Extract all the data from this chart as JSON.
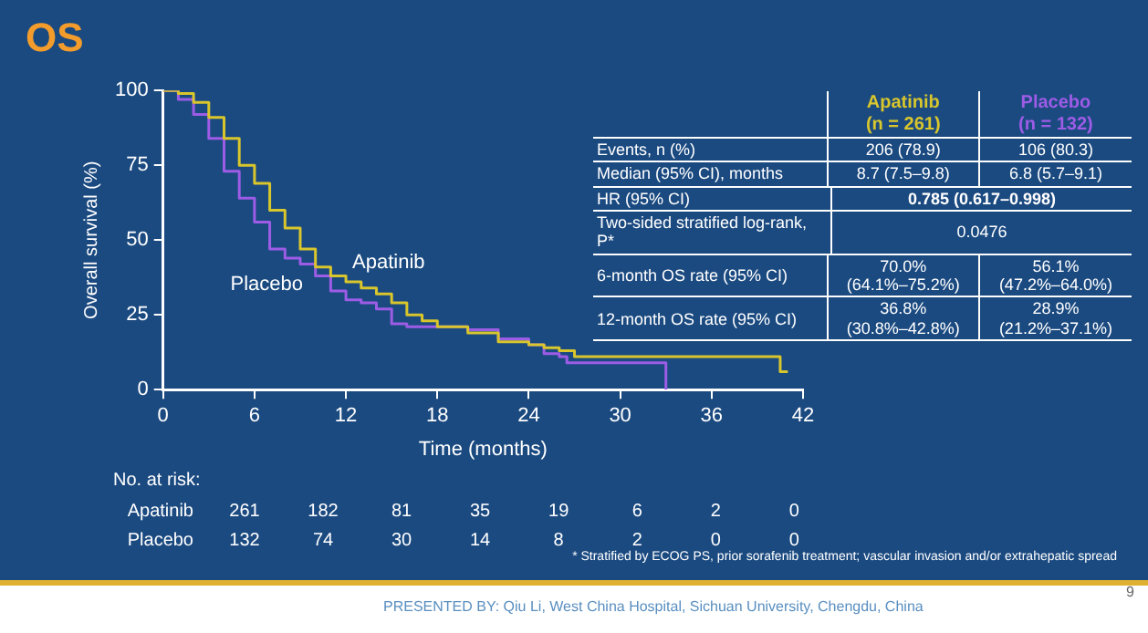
{
  "chart_data": {
    "type": "step",
    "title": "OS",
    "xlabel": "Time (months)",
    "ylabel": "Overall survival (%)",
    "xlim": [
      0,
      42
    ],
    "xticks": [
      0,
      6,
      12,
      18,
      24,
      30,
      36,
      42
    ],
    "ylim": [
      0,
      100
    ],
    "yticks": [
      0,
      25,
      50,
      75,
      100
    ],
    "grid": false,
    "legend": false,
    "series": [
      {
        "name": "Apatinib",
        "color": "#d8c62c",
        "x": [
          0,
          1,
          2,
          3,
          4,
          5,
          6,
          7,
          8,
          9,
          10,
          11,
          12,
          13,
          14,
          15,
          16,
          17,
          18,
          20,
          22,
          24,
          25,
          26,
          27,
          40.5,
          40.5,
          41
        ],
        "values": [
          100,
          99,
          96,
          91,
          84,
          75,
          69,
          60,
          54,
          47,
          41,
          38,
          36,
          34,
          32,
          29,
          25,
          23,
          21,
          19,
          16,
          15,
          14,
          13,
          11,
          11,
          6,
          6
        ]
      },
      {
        "name": "Placebo",
        "color": "#9d5ce6",
        "x": [
          0,
          1,
          2,
          3,
          4,
          5,
          6,
          7,
          8,
          9,
          10,
          11,
          12,
          13,
          14,
          15,
          16,
          18,
          20,
          22,
          24,
          25,
          26,
          26.5,
          33,
          33
        ],
        "values": [
          100,
          97,
          92,
          84,
          73,
          64,
          56,
          47,
          44,
          42,
          38,
          33,
          30,
          29,
          27,
          22,
          21,
          21,
          20,
          17,
          15,
          12,
          11,
          9,
          9,
          0
        ]
      }
    ],
    "annotations": [
      "No. at risk:",
      "Apatinib",
      "261",
      "182",
      "81",
      "35",
      "19",
      "6",
      "2",
      "0",
      "Placebo",
      "132",
      "74",
      "30",
      "14",
      "8",
      "2",
      "0",
      "0",
      "Apatinib\n(n = 261)",
      "Placebo\n(n = 132)",
      "Events, n (%)",
      "206 (78.9)",
      "106 (80.3)",
      "Median (95% CI), months",
      "8.7 (7.5–9.8)",
      "6.8 (5.7–9.1)",
      "HR (95% CI)",
      "0.785 (0.617–0.998)",
      "Two-sided stratified log-rank, P*",
      "0.0476",
      "6-month OS rate (95% CI)",
      "70.0%\n(64.1%–75.2%)",
      "56.1%\n(47.2%–64.0%)",
      "12-month OS rate (95% CI)",
      "36.8%\n(30.8%–42.8%)",
      "28.9%\n(21.2%–37.1%)",
      "* Stratified by ECOG PS, prior sorafenib treatment; vascular invasion and/or extrahepatic spread",
      "PRESENTED BY: Qiu Li, West China Hospital, Sichuan University, Chengdu, China",
      "9"
    ]
  }
}
